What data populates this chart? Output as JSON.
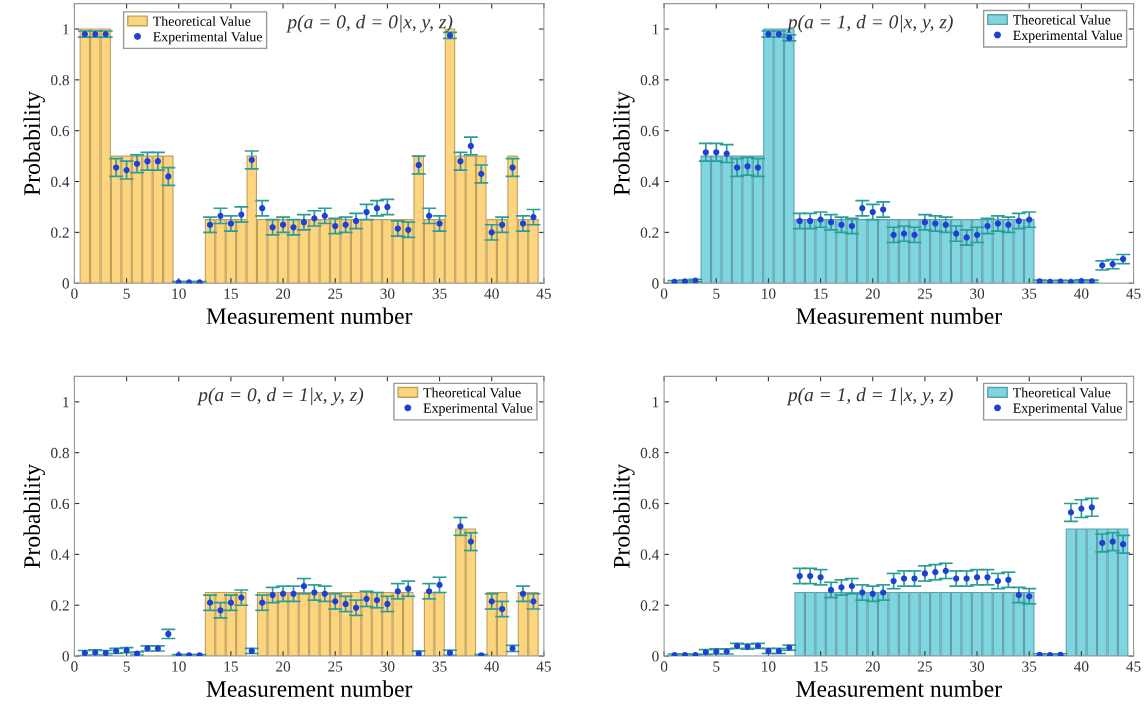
{
  "chart_data": [
    {
      "type": "bar",
      "title": "p(a = 0, d = 0|x, y, z)",
      "xlabel": "Measurement number",
      "ylabel": "Probability",
      "legend": "top left",
      "x": [
        1,
        2,
        3,
        4,
        5,
        6,
        7,
        8,
        9,
        10,
        11,
        12,
        13,
        14,
        15,
        16,
        17,
        18,
        19,
        20,
        21,
        22,
        23,
        24,
        25,
        26,
        27,
        28,
        29,
        30,
        31,
        32,
        33,
        34,
        35,
        36,
        37,
        38,
        39,
        40,
        41,
        42,
        43,
        44
      ],
      "xlim": [
        0,
        45
      ],
      "xticks": [
        0,
        5,
        10,
        15,
        20,
        25,
        30,
        35,
        40,
        45
      ],
      "ylim": [
        0,
        1.1
      ],
      "yticks": [
        0,
        0.2,
        0.4,
        0.6,
        0.8,
        1
      ],
      "series": [
        {
          "name": "Theoretical Value",
          "type": "bar",
          "color": "#fdd57e",
          "values": [
            1,
            1,
            1,
            0.5,
            0.5,
            0.5,
            0.5,
            0.5,
            0.5,
            0,
            0,
            0,
            0.25,
            0.25,
            0.25,
            0.25,
            0.5,
            0.25,
            0.25,
            0.25,
            0.25,
            0.25,
            0.25,
            0.25,
            0.25,
            0.25,
            0.25,
            0.25,
            0.25,
            0.25,
            0.25,
            0.25,
            0.5,
            0.25,
            0.25,
            1,
            0.5,
            0.5,
            0.5,
            0.25,
            0.25,
            0.5,
            0.25,
            0.25
          ]
        },
        {
          "name": "Experimental Value",
          "type": "scatter",
          "color": "#1f3fd8",
          "values": [
            0.98,
            0.98,
            0.98,
            0.455,
            0.445,
            0.47,
            0.48,
            0.48,
            0.42,
            0.003,
            0.003,
            0.003,
            0.23,
            0.265,
            0.235,
            0.27,
            0.485,
            0.295,
            0.22,
            0.23,
            0.22,
            0.24,
            0.255,
            0.265,
            0.225,
            0.23,
            0.245,
            0.28,
            0.295,
            0.3,
            0.215,
            0.21,
            0.465,
            0.265,
            0.235,
            0.975,
            0.48,
            0.54,
            0.43,
            0.2,
            0.23,
            0.455,
            0.235,
            0.26
          ],
          "errors": [
            0.012,
            0.012,
            0.012,
            0.035,
            0.035,
            0.035,
            0.035,
            0.035,
            0.035,
            0.003,
            0.003,
            0.003,
            0.03,
            0.03,
            0.03,
            0.03,
            0.035,
            0.03,
            0.03,
            0.03,
            0.03,
            0.03,
            0.03,
            0.03,
            0.03,
            0.03,
            0.03,
            0.03,
            0.03,
            0.03,
            0.03,
            0.03,
            0.035,
            0.03,
            0.03,
            0.012,
            0.035,
            0.035,
            0.035,
            0.03,
            0.03,
            0.035,
            0.03,
            0.03
          ]
        }
      ]
    },
    {
      "type": "bar",
      "title": "p(a = 1, d = 0|x, y, z)",
      "xlabel": "Measurement number",
      "ylabel": "Probability",
      "legend": "top right",
      "x": [
        1,
        2,
        3,
        4,
        5,
        6,
        7,
        8,
        9,
        10,
        11,
        12,
        13,
        14,
        15,
        16,
        17,
        18,
        19,
        20,
        21,
        22,
        23,
        24,
        25,
        26,
        27,
        28,
        29,
        30,
        31,
        32,
        33,
        34,
        35,
        36,
        37,
        38,
        39,
        40,
        41,
        42,
        43,
        44
      ],
      "xlim": [
        0,
        45
      ],
      "xticks": [
        0,
        5,
        10,
        15,
        20,
        25,
        30,
        35,
        40,
        45
      ],
      "ylim": [
        0,
        1.1
      ],
      "yticks": [
        0,
        0.2,
        0.4,
        0.6,
        0.8,
        1
      ],
      "series": [
        {
          "name": "Theoretical Value",
          "type": "bar",
          "color": "#7fd6e0",
          "values": [
            0,
            0,
            0,
            0.5,
            0.5,
            0.5,
            0.5,
            0.5,
            0.5,
            1,
            1,
            1,
            0.25,
            0.25,
            0.25,
            0.25,
            0.25,
            0.25,
            0.25,
            0.25,
            0.25,
            0.25,
            0.25,
            0.25,
            0.25,
            0.25,
            0.25,
            0.25,
            0.25,
            0.25,
            0.25,
            0.25,
            0.25,
            0.25,
            0.25,
            0,
            0,
            0,
            0,
            0,
            0,
            0,
            0,
            0
          ]
        },
        {
          "name": "Experimental Value",
          "type": "scatter",
          "color": "#1f3fd8",
          "values": [
            0.005,
            0.007,
            0.01,
            0.515,
            0.515,
            0.51,
            0.455,
            0.46,
            0.455,
            0.98,
            0.98,
            0.965,
            0.245,
            0.245,
            0.25,
            0.24,
            0.23,
            0.225,
            0.295,
            0.28,
            0.29,
            0.19,
            0.195,
            0.19,
            0.24,
            0.235,
            0.23,
            0.195,
            0.18,
            0.19,
            0.225,
            0.235,
            0.23,
            0.245,
            0.25,
            0.007,
            0.005,
            0.006,
            0.005,
            0.008,
            0.007,
            0.07,
            0.075,
            0.095
          ],
          "errors": [
            0.005,
            0.005,
            0.005,
            0.035,
            0.035,
            0.035,
            0.035,
            0.035,
            0.035,
            0.012,
            0.012,
            0.012,
            0.03,
            0.03,
            0.03,
            0.03,
            0.03,
            0.03,
            0.03,
            0.03,
            0.03,
            0.03,
            0.03,
            0.03,
            0.03,
            0.03,
            0.03,
            0.03,
            0.03,
            0.03,
            0.03,
            0.03,
            0.03,
            0.03,
            0.03,
            0.005,
            0.005,
            0.005,
            0.005,
            0.005,
            0.005,
            0.018,
            0.018,
            0.018
          ]
        }
      ]
    },
    {
      "type": "bar",
      "title": "p(a = 0, d = 1|x, y, z)",
      "xlabel": "Measurement number",
      "ylabel": "Probability",
      "legend": "top right",
      "x": [
        1,
        2,
        3,
        4,
        5,
        6,
        7,
        8,
        9,
        10,
        11,
        12,
        13,
        14,
        15,
        16,
        17,
        18,
        19,
        20,
        21,
        22,
        23,
        24,
        25,
        26,
        27,
        28,
        29,
        30,
        31,
        32,
        33,
        34,
        35,
        36,
        37,
        38,
        39,
        40,
        41,
        42,
        43,
        44
      ],
      "xlim": [
        0,
        45
      ],
      "xticks": [
        0,
        5,
        10,
        15,
        20,
        25,
        30,
        35,
        40,
        45
      ],
      "ylim": [
        0,
        1.1
      ],
      "yticks": [
        0,
        0.2,
        0.4,
        0.6,
        0.8,
        1
      ],
      "series": [
        {
          "name": "Theoretical Value",
          "type": "bar",
          "color": "#fdd57e",
          "values": [
            0,
            0,
            0,
            0,
            0,
            0,
            0,
            0,
            0,
            0,
            0,
            0,
            0.25,
            0.25,
            0.25,
            0.25,
            0,
            0.25,
            0.25,
            0.25,
            0.25,
            0.25,
            0.25,
            0.25,
            0.25,
            0.25,
            0.25,
            0.25,
            0.25,
            0.25,
            0.25,
            0.25,
            0,
            0.25,
            0.25,
            0,
            0.5,
            0.5,
            0,
            0.25,
            0.25,
            0,
            0.25,
            0.25
          ]
        },
        {
          "name": "Experimental Value",
          "type": "scatter",
          "color": "#1f3fd8",
          "values": [
            0.012,
            0.014,
            0.012,
            0.02,
            0.023,
            0.01,
            0.03,
            0.03,
            0.087,
            0.003,
            0.003,
            0.003,
            0.21,
            0.18,
            0.21,
            0.23,
            0.02,
            0.21,
            0.24,
            0.245,
            0.245,
            0.275,
            0.25,
            0.245,
            0.215,
            0.205,
            0.19,
            0.225,
            0.22,
            0.205,
            0.255,
            0.265,
            0.01,
            0.255,
            0.28,
            0.013,
            0.51,
            0.45,
            0.003,
            0.215,
            0.185,
            0.03,
            0.245,
            0.215
          ],
          "errors": [
            0.01,
            0.01,
            0.01,
            0.01,
            0.01,
            0.006,
            0.01,
            0.01,
            0.018,
            0.003,
            0.003,
            0.003,
            0.03,
            0.03,
            0.03,
            0.03,
            0.01,
            0.03,
            0.03,
            0.03,
            0.03,
            0.03,
            0.03,
            0.03,
            0.03,
            0.03,
            0.03,
            0.03,
            0.03,
            0.03,
            0.03,
            0.03,
            0.01,
            0.03,
            0.03,
            0.01,
            0.035,
            0.035,
            0.003,
            0.03,
            0.03,
            0.012,
            0.03,
            0.03
          ]
        }
      ]
    },
    {
      "type": "bar",
      "title": "p(a = 1, d = 1|x, y, z)",
      "xlabel": "Measurement number",
      "ylabel": "Probability",
      "legend": "top right",
      "x": [
        1,
        2,
        3,
        4,
        5,
        6,
        7,
        8,
        9,
        10,
        11,
        12,
        13,
        14,
        15,
        16,
        17,
        18,
        19,
        20,
        21,
        22,
        23,
        24,
        25,
        26,
        27,
        28,
        29,
        30,
        31,
        32,
        33,
        34,
        35,
        36,
        37,
        38,
        39,
        40,
        41,
        42,
        43,
        44
      ],
      "xlim": [
        0,
        45
      ],
      "xticks": [
        0,
        5,
        10,
        15,
        20,
        25,
        30,
        35,
        40,
        45
      ],
      "ylim": [
        0,
        1.1
      ],
      "yticks": [
        0,
        0.2,
        0.4,
        0.6,
        0.8,
        1
      ],
      "series": [
        {
          "name": "Theoretical Value",
          "type": "bar",
          "color": "#7fd6e0",
          "values": [
            0,
            0,
            0,
            0,
            0,
            0,
            0,
            0,
            0,
            0,
            0,
            0,
            0.25,
            0.25,
            0.25,
            0.25,
            0.25,
            0.25,
            0.25,
            0.25,
            0.25,
            0.25,
            0.25,
            0.25,
            0.25,
            0.25,
            0.25,
            0.25,
            0.25,
            0.25,
            0.25,
            0.25,
            0.25,
            0.25,
            0.25,
            0,
            0,
            0,
            0.5,
            0.5,
            0.5,
            0.5,
            0.5,
            0.5
          ]
        },
        {
          "name": "Experimental Value",
          "type": "scatter",
          "color": "#1f3fd8",
          "values": [
            0.004,
            0.004,
            0.004,
            0.015,
            0.018,
            0.018,
            0.04,
            0.037,
            0.04,
            0.02,
            0.02,
            0.033,
            0.315,
            0.315,
            0.31,
            0.26,
            0.27,
            0.275,
            0.25,
            0.245,
            0.25,
            0.295,
            0.305,
            0.305,
            0.325,
            0.33,
            0.335,
            0.305,
            0.305,
            0.31,
            0.31,
            0.295,
            0.3,
            0.24,
            0.235,
            0.005,
            0.004,
            0.005,
            0.565,
            0.58,
            0.585,
            0.445,
            0.45,
            0.44
          ],
          "errors": [
            0.004,
            0.004,
            0.004,
            0.01,
            0.01,
            0.01,
            0.01,
            0.01,
            0.01,
            0.01,
            0.01,
            0.01,
            0.03,
            0.03,
            0.03,
            0.03,
            0.03,
            0.03,
            0.03,
            0.03,
            0.03,
            0.03,
            0.03,
            0.03,
            0.03,
            0.03,
            0.03,
            0.03,
            0.03,
            0.03,
            0.03,
            0.03,
            0.03,
            0.03,
            0.03,
            0.004,
            0.004,
            0.004,
            0.035,
            0.035,
            0.035,
            0.035,
            0.035,
            0.035
          ]
        }
      ]
    }
  ]
}
